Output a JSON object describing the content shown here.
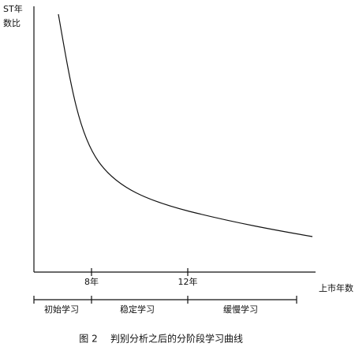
{
  "y_axis_label": [
    "ST年",
    "数比"
  ],
  "x_axis_label": "上市年数",
  "x_ticks": [
    "8年",
    "12年"
  ],
  "stages": [
    "初始学习",
    "稳定学习",
    "缓慢学习"
  ],
  "caption": {
    "figure": "图 2",
    "title": "判别分析之后的分阶段学习曲线"
  }
}
